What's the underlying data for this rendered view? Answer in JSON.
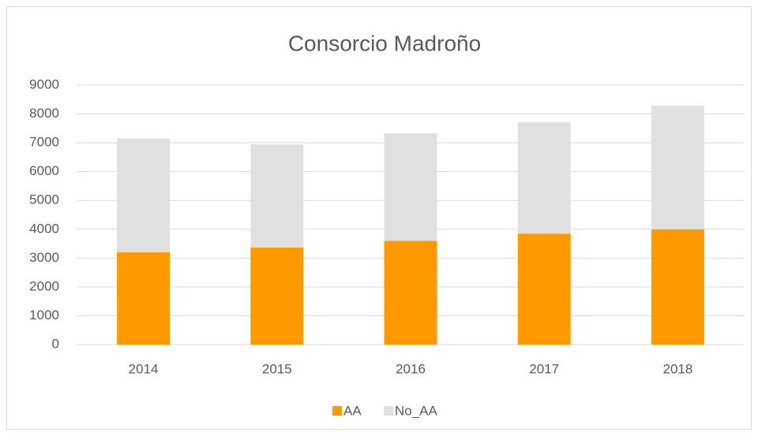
{
  "chart_data": {
    "type": "stacked_bar",
    "title": "Consorcio Madroño",
    "categories": [
      "2014",
      "2015",
      "2016",
      "2017",
      "2018"
    ],
    "series": [
      {
        "name": "AA",
        "color": "#ff9900",
        "values": [
          3200,
          3370,
          3600,
          3850,
          4000
        ]
      },
      {
        "name": "No_AA",
        "color": "#e0e0e0",
        "values": [
          3950,
          3580,
          3730,
          3870,
          4290
        ]
      }
    ],
    "ylim": [
      0,
      9000
    ],
    "yticks": [
      0,
      1000,
      2000,
      3000,
      4000,
      5000,
      6000,
      7000,
      8000,
      9000
    ],
    "grid": true,
    "legend": "bottom"
  }
}
